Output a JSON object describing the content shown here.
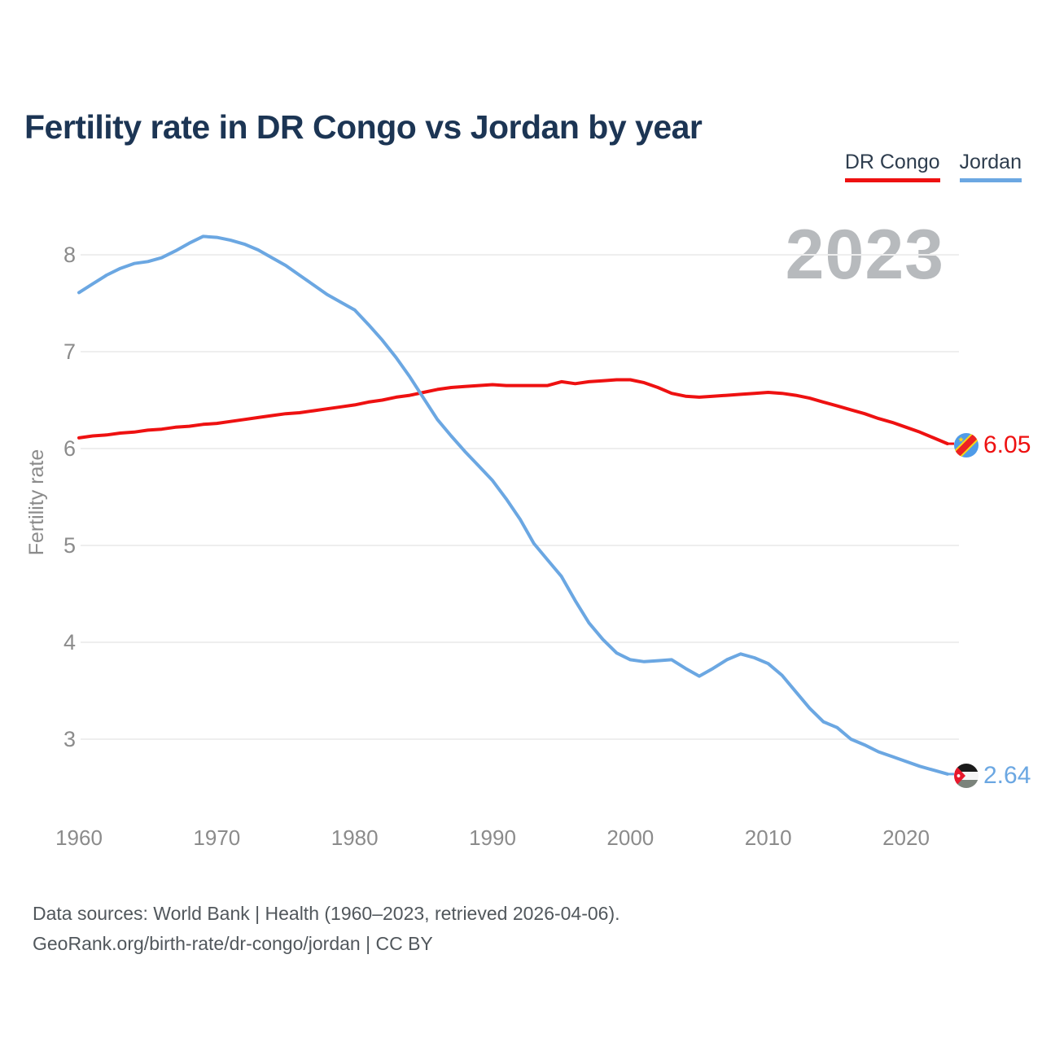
{
  "header": {
    "title": "Fertility rate in DR Congo vs Jordan by year"
  },
  "legend": [
    {
      "label": "DR Congo",
      "color": "#ee1111"
    },
    {
      "label": "Jordan",
      "color": "#6ba7e2"
    }
  ],
  "watermark": "2023",
  "axes": {
    "y_label": "Fertility rate",
    "y_ticks": [
      "8",
      "7",
      "6",
      "5",
      "4",
      "3"
    ],
    "x_ticks": [
      "1960",
      "1970",
      "1980",
      "1990",
      "2000",
      "2010",
      "2020"
    ]
  },
  "end_markers": [
    {
      "series": "DR Congo",
      "value_label": "6.05",
      "flag": "dr-congo-flag",
      "color": "#ee1111"
    },
    {
      "series": "Jordan",
      "value_label": "2.64",
      "flag": "jordan-flag",
      "color": "#6ba7e2"
    }
  ],
  "footer": {
    "line1": "Data sources: World Bank | Health (1960–2023, retrieved 2026-04-06).",
    "line2": "GeoRank.org/birth-rate/dr-congo/jordan | CC BY"
  },
  "chart_data": {
    "type": "line",
    "title": "Fertility rate in DR Congo vs Jordan by year",
    "xlabel": "",
    "ylabel": "Fertility rate",
    "grid": "horizontal",
    "legend_position": "top-right",
    "xlim": [
      1960,
      2023
    ],
    "ylim": [
      2.4,
      8.4
    ],
    "xticks": [
      1960,
      1970,
      1980,
      1990,
      2000,
      2010,
      2020
    ],
    "yticks": [
      3,
      4,
      5,
      6,
      7,
      8
    ],
    "x": [
      1960,
      1961,
      1962,
      1963,
      1964,
      1965,
      1966,
      1967,
      1968,
      1969,
      1970,
      1971,
      1972,
      1973,
      1974,
      1975,
      1976,
      1977,
      1978,
      1979,
      1980,
      1981,
      1982,
      1983,
      1984,
      1985,
      1986,
      1987,
      1988,
      1989,
      1990,
      1991,
      1992,
      1993,
      1994,
      1995,
      1996,
      1997,
      1998,
      1999,
      2000,
      2001,
      2002,
      2003,
      2004,
      2005,
      2006,
      2007,
      2008,
      2009,
      2010,
      2011,
      2012,
      2013,
      2014,
      2015,
      2016,
      2017,
      2018,
      2019,
      2020,
      2021,
      2022,
      2023
    ],
    "series": [
      {
        "name": "DR Congo",
        "color": "#ee1111",
        "end_label": "6.05",
        "values": [
          6.11,
          6.13,
          6.14,
          6.16,
          6.17,
          6.19,
          6.2,
          6.22,
          6.23,
          6.25,
          6.26,
          6.28,
          6.3,
          6.32,
          6.34,
          6.36,
          6.37,
          6.39,
          6.41,
          6.43,
          6.45,
          6.48,
          6.5,
          6.53,
          6.55,
          6.58,
          6.61,
          6.63,
          6.64,
          6.65,
          6.66,
          6.65,
          6.65,
          6.65,
          6.65,
          6.69,
          6.67,
          6.69,
          6.7,
          6.71,
          6.71,
          6.68,
          6.63,
          6.57,
          6.54,
          6.53,
          6.54,
          6.55,
          6.56,
          6.57,
          6.58,
          6.57,
          6.55,
          6.52,
          6.48,
          6.44,
          6.4,
          6.36,
          6.31,
          6.27,
          6.22,
          6.17,
          6.11,
          6.05
        ]
      },
      {
        "name": "Jordan",
        "color": "#6ba7e2",
        "end_label": "2.64",
        "values": [
          7.61,
          7.7,
          7.79,
          7.86,
          7.91,
          7.93,
          7.97,
          8.04,
          8.12,
          8.19,
          8.18,
          8.15,
          8.11,
          8.05,
          7.97,
          7.89,
          7.79,
          7.69,
          7.59,
          7.51,
          7.43,
          7.28,
          7.12,
          6.94,
          6.74,
          6.52,
          6.3,
          6.13,
          5.97,
          5.82,
          5.67,
          5.48,
          5.27,
          5.02,
          4.85,
          4.68,
          4.43,
          4.2,
          4.03,
          3.89,
          3.82,
          3.8,
          3.81,
          3.82,
          3.73,
          3.65,
          3.73,
          3.82,
          3.88,
          3.84,
          3.78,
          3.66,
          3.49,
          3.32,
          3.18,
          3.12,
          3.0,
          2.94,
          2.87,
          2.82,
          2.77,
          2.72,
          2.68,
          2.64
        ]
      }
    ]
  }
}
